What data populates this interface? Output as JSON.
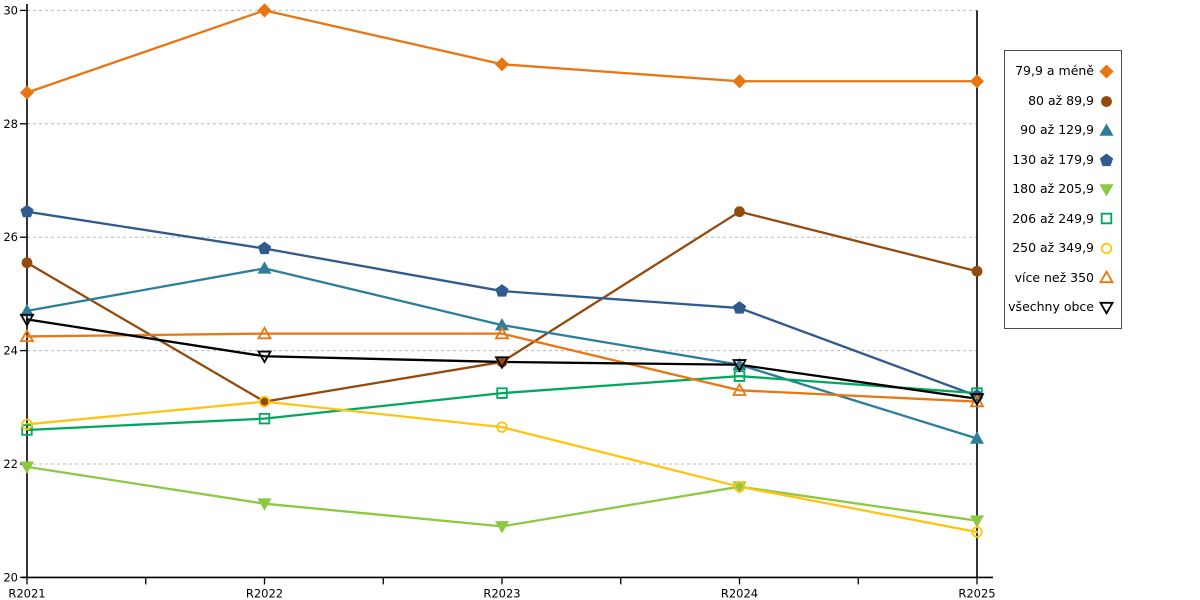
{
  "chart_data": {
    "type": "line",
    "title": "",
    "xlabel": "",
    "ylabel": "",
    "categories": [
      "R2021",
      "R2022",
      "R2023",
      "R2024",
      "R2025"
    ],
    "ylim": [
      20,
      30
    ],
    "yticks": [
      20,
      22,
      24,
      26,
      28,
      30
    ],
    "grid": "horizontal-dashed",
    "legend_position": "right",
    "series": [
      {
        "name": "79,9 a méně",
        "color": "#E87612",
        "marker": "diamond",
        "marker_fill": "filled",
        "values": [
          28.55,
          30.0,
          29.05,
          28.75,
          28.75
        ]
      },
      {
        "name": "80 až 89,9",
        "color": "#954A0D",
        "marker": "circle",
        "marker_fill": "filled",
        "values": [
          25.55,
          23.1,
          23.8,
          26.45,
          25.4
        ]
      },
      {
        "name": "90 až 129,9",
        "color": "#2C7F99",
        "marker": "triangle-up",
        "marker_fill": "filled",
        "values": [
          24.7,
          25.45,
          24.45,
          23.75,
          22.45
        ]
      },
      {
        "name": "130 až 179,9",
        "color": "#315A8D",
        "marker": "pentagon",
        "marker_fill": "filled",
        "values": [
          26.45,
          25.8,
          25.05,
          24.75,
          23.2
        ]
      },
      {
        "name": "180 až 205,9",
        "color": "#8CC841",
        "marker": "triangle-down",
        "marker_fill": "filled",
        "values": [
          21.95,
          21.3,
          20.9,
          21.6,
          21.0
        ]
      },
      {
        "name": "206 až 249,9",
        "color": "#00A85D",
        "marker": "square",
        "marker_fill": "open",
        "values": [
          22.6,
          22.8,
          23.25,
          23.55,
          23.25
        ]
      },
      {
        "name": "250 až 349,9",
        "color": "#FDC513",
        "marker": "circle",
        "marker_fill": "open",
        "values": [
          22.7,
          23.1,
          22.65,
          21.6,
          20.8
        ]
      },
      {
        "name": "více než 350",
        "color": "#E87612",
        "marker": "triangle-up",
        "marker_fill": "open",
        "values": [
          24.25,
          24.3,
          24.3,
          23.3,
          23.1
        ]
      },
      {
        "name": "všechny obce",
        "color": "#000000",
        "marker": "triangle-down",
        "marker_fill": "open",
        "values": [
          24.55,
          23.9,
          23.8,
          23.75,
          23.15
        ]
      }
    ],
    "axis_color": "#000000",
    "gridline_color": "#b9b9b9"
  }
}
